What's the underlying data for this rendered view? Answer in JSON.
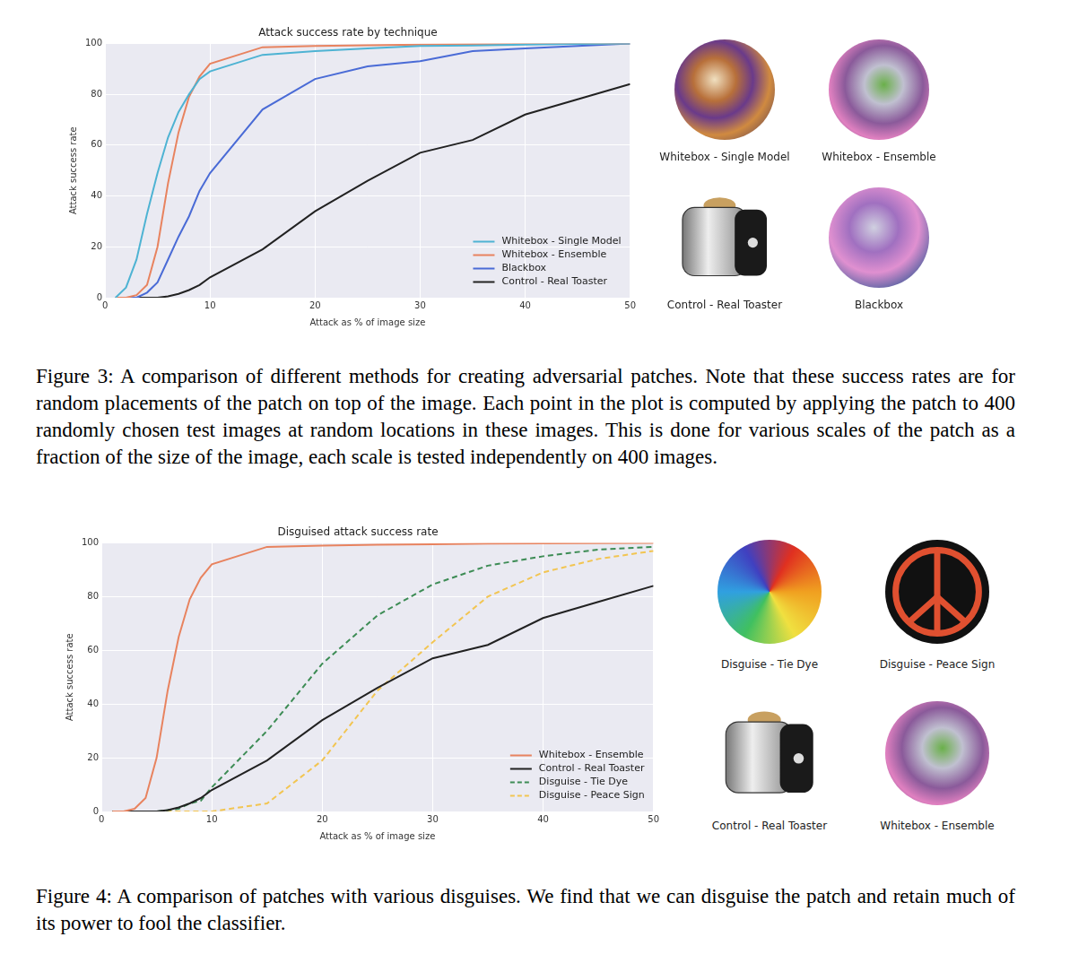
{
  "chart_data": [
    {
      "type": "line",
      "title": "Attack success rate by technique",
      "x_label": "Attack as % of image size",
      "y_label": "Attack success rate",
      "x": [
        1,
        2,
        3,
        4,
        5,
        6,
        7,
        8,
        9,
        10,
        15,
        20,
        25,
        30,
        35,
        40,
        45,
        50
      ],
      "series": [
        {
          "name": "Whitebox - Single Model",
          "color": "#4eb3d3",
          "line_style": "solid",
          "values": [
            0,
            4,
            15,
            33,
            49,
            63,
            73,
            80,
            86,
            89,
            95.5,
            97,
            98,
            99,
            99.2,
            99.5,
            99.8,
            100
          ]
        },
        {
          "name": "Whitebox - Ensemble",
          "color": "#e8835f",
          "line_style": "solid",
          "values": [
            0,
            0,
            1,
            5,
            20,
            45,
            65,
            79,
            87,
            92,
            98.5,
            99,
            99.3,
            99.5,
            99.7,
            99.8,
            99.9,
            100
          ]
        },
        {
          "name": "Blackbox",
          "color": "#4a6bd6",
          "line_style": "solid",
          "values": [
            0,
            0,
            0,
            2,
            6,
            15,
            24,
            32,
            42,
            49,
            74,
            86,
            91,
            93,
            97,
            98,
            99,
            100
          ]
        },
        {
          "name": "Control - Real Toaster",
          "color": "#222222",
          "line_style": "solid",
          "values": [
            0,
            0,
            0,
            0,
            0,
            0.5,
            1.5,
            3,
            5,
            8,
            19,
            34,
            46,
            57,
            62,
            72,
            78,
            84
          ]
        }
      ],
      "xlim": [
        0,
        50
      ],
      "xticks": [
        0,
        10,
        20,
        30,
        40,
        50
      ],
      "ylim": [
        0,
        100
      ],
      "yticks": [
        0,
        20,
        40,
        60,
        80,
        100
      ],
      "grid": true,
      "legend": "lower right"
    },
    {
      "type": "line",
      "title": "Disguised attack success rate",
      "x_label": "Attack as % of image size",
      "y_label": "Attack success rate",
      "x": [
        1,
        2,
        3,
        4,
        5,
        6,
        7,
        8,
        9,
        10,
        15,
        20,
        25,
        30,
        35,
        40,
        45,
        50
      ],
      "series": [
        {
          "name": "Whitebox - Ensemble",
          "color": "#e8835f",
          "line_style": "solid",
          "values": [
            0,
            0,
            1,
            5,
            20,
            45,
            65,
            79,
            87,
            92,
            98.5,
            99,
            99.3,
            99.5,
            99.7,
            99.8,
            99.9,
            100
          ]
        },
        {
          "name": "Control - Real Toaster",
          "color": "#222222",
          "line_style": "solid",
          "values": [
            0,
            0,
            0,
            0,
            0,
            0.5,
            1.5,
            3,
            5,
            8,
            19,
            34,
            46,
            57,
            62,
            72,
            78,
            84
          ]
        },
        {
          "name": "Disguise - Tie Dye",
          "color": "#3d8c55",
          "line_style": "dashed",
          "values": [
            0,
            0,
            0,
            0,
            0,
            0.5,
            1,
            3,
            4,
            9,
            30,
            55,
            73,
            84.5,
            91.5,
            95,
            97.5,
            98.5
          ]
        },
        {
          "name": "Disguise - Peace Sign",
          "color": "#f2c552",
          "line_style": "dashed",
          "values": [
            0,
            0,
            0,
            0,
            0,
            0,
            0,
            0,
            0,
            0,
            3,
            19,
            45,
            63,
            80,
            89,
            94,
            97
          ]
        }
      ],
      "xlim": [
        0,
        50
      ],
      "xticks": [
        0,
        10,
        20,
        30,
        40,
        50
      ],
      "ylim": [
        0,
        100
      ],
      "yticks": [
        0,
        20,
        40,
        60,
        80,
        100
      ],
      "grid": true,
      "legend": "lower right"
    }
  ],
  "figures": [
    {
      "thumbnails": [
        "Whitebox - Single Model",
        "Whitebox - Ensemble",
        "Control - Real Toaster",
        "Blackbox"
      ],
      "caption": "Figure 3: A comparison of different methods for creating adversarial patches. Note that these success rates are for random placements of the patch on top of the image. Each point in the plot is computed by applying the patch to 400 randomly chosen test images at random locations in these images. This is done for various scales of the patch as a fraction of the size of the image, each scale is tested independently on 400 images."
    },
    {
      "thumbnails": [
        "Disguise - Tie Dye",
        "Disguise - Peace Sign",
        "Control - Real Toaster",
        "Whitebox - Ensemble"
      ],
      "caption": "Figure 4: A comparison of patches with various disguises. We find that we can disguise the patch and retain much of its power to fool the classifier."
    }
  ]
}
